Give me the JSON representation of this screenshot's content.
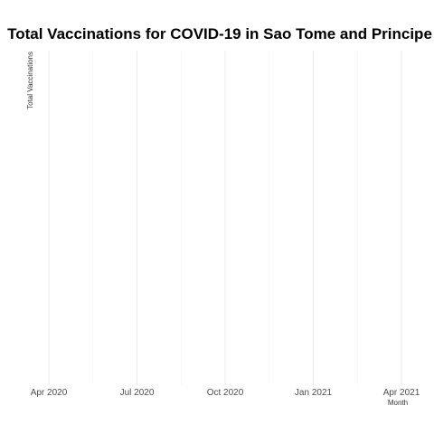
{
  "chart_data": {
    "type": "line",
    "title": "Total Vaccinations for COVID-19 in Sao Tome and Principe",
    "xlabel": "Month",
    "ylabel": "Total Vaccinations",
    "x_ticks": [
      "Apr 2020",
      "Jul 2020",
      "Oct 2020",
      "Jan 2021",
      "Apr 2021"
    ],
    "series": [
      {
        "name": "Total Vaccinations",
        "x": [],
        "values": []
      }
    ],
    "grid": true,
    "legend": "none"
  }
}
